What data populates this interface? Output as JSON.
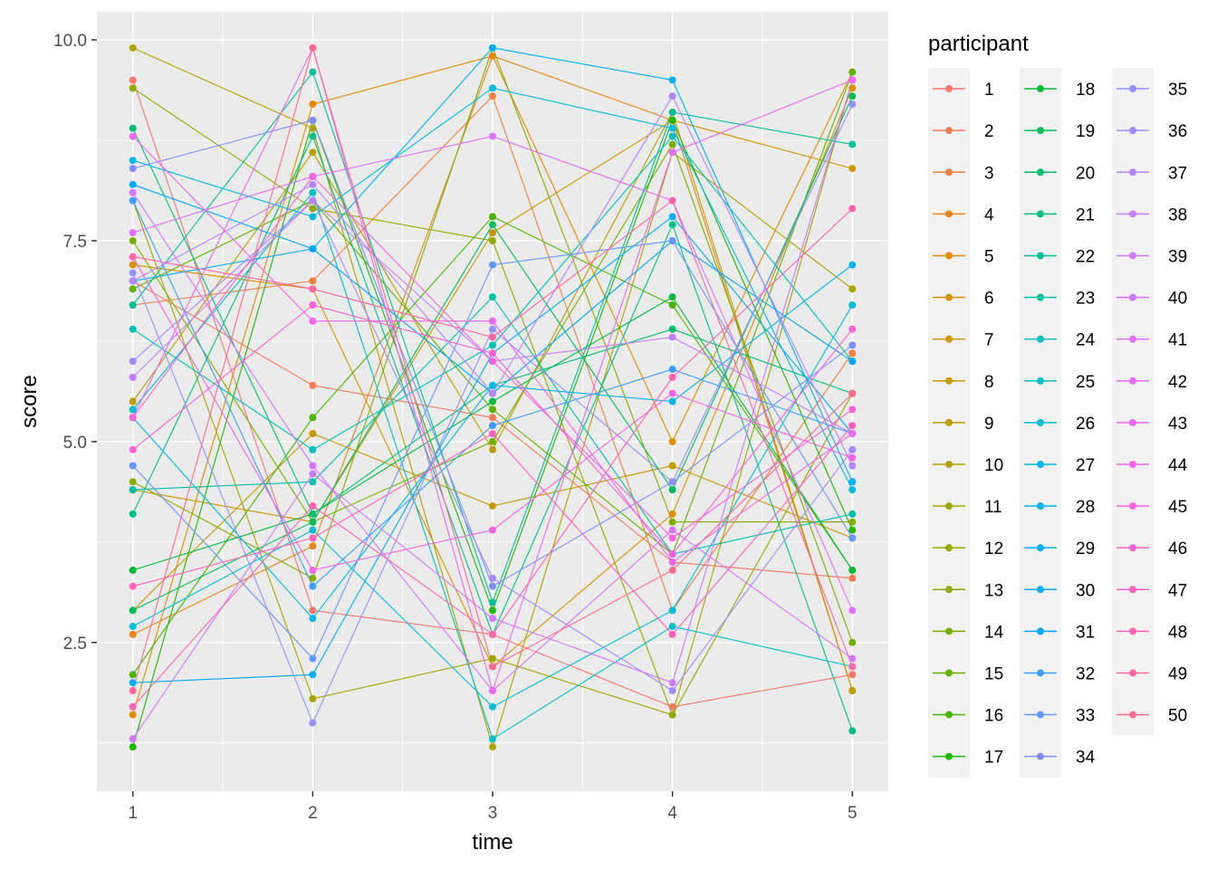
{
  "chart_data": {
    "type": "line",
    "xlabel": "time",
    "ylabel": "score",
    "x": [
      1,
      2,
      3,
      4,
      5
    ],
    "xlim": [
      0.8,
      5.2
    ],
    "ylim": [
      0.65,
      10.35
    ],
    "x_ticks": [
      1,
      2,
      3,
      4,
      5
    ],
    "y_ticks": [
      2.5,
      5.0,
      7.5,
      10.0
    ],
    "y_tick_labels": [
      "2.5",
      "5.0",
      "7.5",
      "10.0"
    ],
    "grid": true,
    "legend": {
      "title": "participant",
      "placement": "right",
      "columns": 3
    },
    "series": [
      {
        "name": "1",
        "color": "#F8766D",
        "values": [
          9.5,
          2.9,
          2.6,
          1.7,
          2.1
        ]
      },
      {
        "name": "2",
        "color": "#F37B59",
        "values": [
          7.0,
          5.7,
          5.3,
          3.5,
          3.3
        ]
      },
      {
        "name": "3",
        "color": "#ED8141",
        "values": [
          6.7,
          7.0,
          9.3,
          2.9,
          6.1
        ]
      },
      {
        "name": "4",
        "color": "#E7861B",
        "values": [
          2.6,
          3.7,
          9.8,
          9.0,
          1.9
        ]
      },
      {
        "name": "5",
        "color": "#E08B00",
        "values": [
          1.6,
          9.2,
          9.8,
          5.0,
          9.6
        ]
      },
      {
        "name": "6",
        "color": "#D89000",
        "values": [
          7.2,
          6.9,
          2.2,
          4.1,
          9.4
        ]
      },
      {
        "name": "7",
        "color": "#CF9400",
        "values": [
          4.4,
          4.0,
          7.6,
          9.0,
          8.4
        ]
      },
      {
        "name": "8",
        "color": "#C59900",
        "values": [
          2.9,
          5.1,
          4.2,
          4.7,
          3.8
        ]
      },
      {
        "name": "9",
        "color": "#BB9D00",
        "values": [
          5.5,
          8.6,
          4.9,
          9.1,
          1.9
        ]
      },
      {
        "name": "10",
        "color": "#AFA100",
        "values": [
          9.9,
          8.9,
          1.2,
          8.6,
          6.9
        ]
      },
      {
        "name": "11",
        "color": "#A3A500",
        "values": [
          8.0,
          1.8,
          2.3,
          1.6,
          9.5
        ]
      },
      {
        "name": "12",
        "color": "#96A900",
        "values": [
          9.4,
          7.9,
          7.5,
          1.6,
          5.6
        ]
      },
      {
        "name": "13",
        "color": "#87AC00",
        "values": [
          4.5,
          3.3,
          9.9,
          4.0,
          4.0
        ]
      },
      {
        "name": "14",
        "color": "#76AF00",
        "values": [
          7.5,
          4.0,
          5.0,
          8.7,
          2.5
        ]
      },
      {
        "name": "15",
        "color": "#62B200",
        "values": [
          6.9,
          8.0,
          5.4,
          3.6,
          9.6
        ]
      },
      {
        "name": "16",
        "color": "#49B500",
        "values": [
          2.1,
          5.3,
          7.8,
          6.7,
          3.4
        ]
      },
      {
        "name": "17",
        "color": "#1FB700",
        "values": [
          1.2,
          9.0,
          2.9,
          9.0,
          3.9
        ]
      },
      {
        "name": "18",
        "color": "#00BA38",
        "values": [
          3.4,
          4.1,
          5.5,
          6.8,
          3.4
        ]
      },
      {
        "name": "19",
        "color": "#00BC59",
        "values": [
          2.9,
          4.0,
          7.7,
          4.4,
          9.3
        ]
      },
      {
        "name": "20",
        "color": "#00BE71",
        "values": [
          8.9,
          4.1,
          5.7,
          6.4,
          5.6
        ]
      },
      {
        "name": "21",
        "color": "#00BF86",
        "values": [
          4.1,
          8.8,
          2.6,
          7.7,
          1.4
        ]
      },
      {
        "name": "22",
        "color": "#00C098",
        "values": [
          6.7,
          9.6,
          3.0,
          9.1,
          8.7
        ]
      },
      {
        "name": "23",
        "color": "#00C0A9",
        "values": [
          4.4,
          4.5,
          6.8,
          3.6,
          4.1
        ]
      },
      {
        "name": "24",
        "color": "#00C0B9",
        "values": [
          6.4,
          4.9,
          6.2,
          8.8,
          6.0
        ]
      },
      {
        "name": "25",
        "color": "#00BFC7",
        "values": [
          5.4,
          8.1,
          1.3,
          2.7,
          2.2
        ]
      },
      {
        "name": "26",
        "color": "#00BDD4",
        "values": [
          2.7,
          3.9,
          1.7,
          2.9,
          6.7
        ]
      },
      {
        "name": "27",
        "color": "#00BAE0",
        "values": [
          8.5,
          7.8,
          9.4,
          8.9,
          4.4
        ]
      },
      {
        "name": "28",
        "color": "#00B6EB",
        "values": [
          5.3,
          2.8,
          5.7,
          5.5,
          7.2
        ]
      },
      {
        "name": "29",
        "color": "#00B1F4",
        "values": [
          7.0,
          7.4,
          9.9,
          9.5,
          4.5
        ]
      },
      {
        "name": "30",
        "color": "#00ABFC",
        "values": [
          2.0,
          2.1,
          6.1,
          7.8,
          5.1
        ]
      },
      {
        "name": "31",
        "color": "#00A5FF",
        "values": [
          8.2,
          7.4,
          5.6,
          7.5,
          6.0
        ]
      },
      {
        "name": "32",
        "color": "#3D9EFF",
        "values": [
          8.0,
          3.2,
          5.2,
          5.9,
          5.1
        ]
      },
      {
        "name": "33",
        "color": "#6597FF",
        "values": [
          4.7,
          2.3,
          7.2,
          7.5,
          3.8
        ]
      },
      {
        "name": "34",
        "color": "#808FFF",
        "values": [
          8.4,
          9.0,
          3.2,
          4.5,
          6.2
        ]
      },
      {
        "name": "35",
        "color": "#9590FF",
        "values": [
          7.1,
          1.5,
          6.4,
          4.5,
          9.2
        ]
      },
      {
        "name": "36",
        "color": "#A58AFF",
        "values": [
          6.0,
          8.0,
          3.3,
          1.9,
          4.9
        ]
      },
      {
        "name": "37",
        "color": "#B385FF",
        "values": [
          7.0,
          8.2,
          5.6,
          9.3,
          4.7
        ]
      },
      {
        "name": "38",
        "color": "#C17FFF",
        "values": [
          5.8,
          8.0,
          6.0,
          6.3,
          5.1
        ]
      },
      {
        "name": "39",
        "color": "#CC7AFF",
        "values": [
          1.3,
          4.6,
          2.8,
          2.0,
          9.5
        ]
      },
      {
        "name": "40",
        "color": "#D575FE",
        "values": [
          8.1,
          4.7,
          1.9,
          3.9,
          2.3
        ]
      },
      {
        "name": "41",
        "color": "#DF70F9",
        "values": [
          7.6,
          8.3,
          8.8,
          8.0,
          2.9
        ]
      },
      {
        "name": "42",
        "color": "#E76BF3",
        "values": [
          5.3,
          9.9,
          1.9,
          8.6,
          9.5
        ]
      },
      {
        "name": "43",
        "color": "#ED68ED",
        "values": [
          8.8,
          6.5,
          6.5,
          3.5,
          5.1
        ]
      },
      {
        "name": "44",
        "color": "#F365E6",
        "values": [
          7.3,
          3.4,
          3.9,
          5.6,
          4.8
        ]
      },
      {
        "name": "45",
        "color": "#F863DF",
        "values": [
          5.3,
          8.3,
          6.0,
          3.8,
          5.4
        ]
      },
      {
        "name": "46",
        "color": "#FC61D5",
        "values": [
          4.9,
          6.7,
          6.1,
          3.6,
          6.4
        ]
      },
      {
        "name": "47",
        "color": "#FF62BC",
        "values": [
          3.2,
          3.8,
          5.1,
          2.6,
          5.2
        ]
      },
      {
        "name": "48",
        "color": "#FF64B0",
        "values": [
          1.7,
          4.2,
          2.6,
          5.8,
          7.9
        ]
      },
      {
        "name": "49",
        "color": "#FF67A4",
        "values": [
          7.3,
          6.9,
          6.3,
          8.0,
          2.2
        ]
      },
      {
        "name": "50",
        "color": "#FF6C91",
        "values": [
          1.9,
          9.9,
          2.2,
          3.4,
          5.6
        ]
      }
    ]
  }
}
